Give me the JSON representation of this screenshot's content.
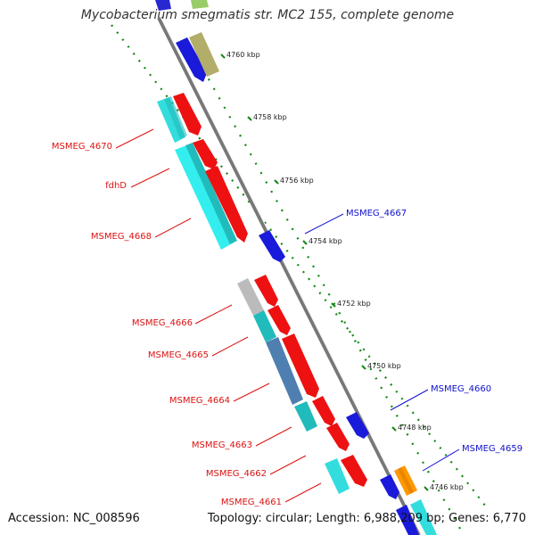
{
  "title": "Mycobacterium smegmatis str. MC2 155, complete genome",
  "footer": {
    "accession": "Accession: NC_008596",
    "summary": "Topology: circular; Length: 6,988,209 bp; Genes: 6,770"
  },
  "backbone_color": "#777777",
  "tick_color": "#118811",
  "ticks": [
    {
      "label": "4760 kbp",
      "kbp": 4760
    },
    {
      "label": "4758 kbp",
      "kbp": 4758
    },
    {
      "label": "4756 kbp",
      "kbp": 4756
    },
    {
      "label": "4754 kbp",
      "kbp": 4754
    },
    {
      "label": "4752 kbp",
      "kbp": 4752
    },
    {
      "label": "4750 kbp",
      "kbp": 4750
    },
    {
      "label": "4748 kbp",
      "kbp": 4748
    },
    {
      "label": "4746 kbp",
      "kbp": 4746
    }
  ],
  "gene_labels_left": [
    {
      "text": "MSMEG_4670",
      "color": "#dd1111"
    },
    {
      "text": "fdhD",
      "color": "#dd1111"
    },
    {
      "text": "MSMEG_4668",
      "color": "#dd1111"
    },
    {
      "text": "MSMEG_4666",
      "color": "#dd1111"
    },
    {
      "text": "MSMEG_4665",
      "color": "#dd1111"
    },
    {
      "text": "MSMEG_4664",
      "color": "#dd1111"
    },
    {
      "text": "MSMEG_4663",
      "color": "#dd1111"
    },
    {
      "text": "MSMEG_4662",
      "color": "#dd1111"
    },
    {
      "text": "MSMEG_4661",
      "color": "#dd1111"
    }
  ],
  "gene_labels_right": [
    {
      "text": "MSMEG_4667",
      "color": "#1111cc"
    },
    {
      "text": "MSMEG_4660",
      "color": "#1111cc"
    },
    {
      "text": "MSMEG_4659",
      "color": "#1111cc"
    }
  ]
}
